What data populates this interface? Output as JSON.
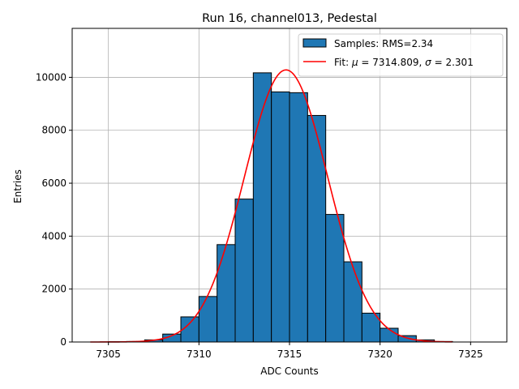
{
  "chart_data": {
    "type": "bar",
    "title": "Run 16, channel013, Pedestal",
    "xlabel": "ADC Counts",
    "ylabel": "Entries",
    "xlim": [
      7303.0,
      7327.0
    ],
    "ylim": [
      0,
      11850
    ],
    "xticks": [
      7305,
      7310,
      7315,
      7320,
      7325
    ],
    "yticks": [
      0,
      2000,
      4000,
      6000,
      8000,
      10000
    ],
    "grid": true,
    "legend_position": "top-right",
    "histogram": {
      "label": "Samples: RMS=2.34",
      "color": "#1f77b4",
      "edge_color": "#000000",
      "bin_edges": [
        7304,
        7305,
        7306,
        7307,
        7308,
        7309,
        7310,
        7311,
        7312,
        7313,
        7314,
        7315,
        7316,
        7317,
        7318,
        7319,
        7320,
        7321,
        7322,
        7323,
        7324
      ],
      "counts": [
        0,
        10,
        20,
        80,
        300,
        950,
        1720,
        3680,
        5400,
        10170,
        9450,
        9420,
        8560,
        4820,
        3030,
        1090,
        520,
        240,
        80,
        20
      ]
    },
    "fit": {
      "label_prefix": "Fit: ",
      "mu": 7314.809,
      "sigma": 2.301,
      "mu_text": "7314.809",
      "sigma_text": "2.301",
      "peak": 10280,
      "color": "#ff0000",
      "x_range": [
        7304,
        7324
      ]
    }
  }
}
